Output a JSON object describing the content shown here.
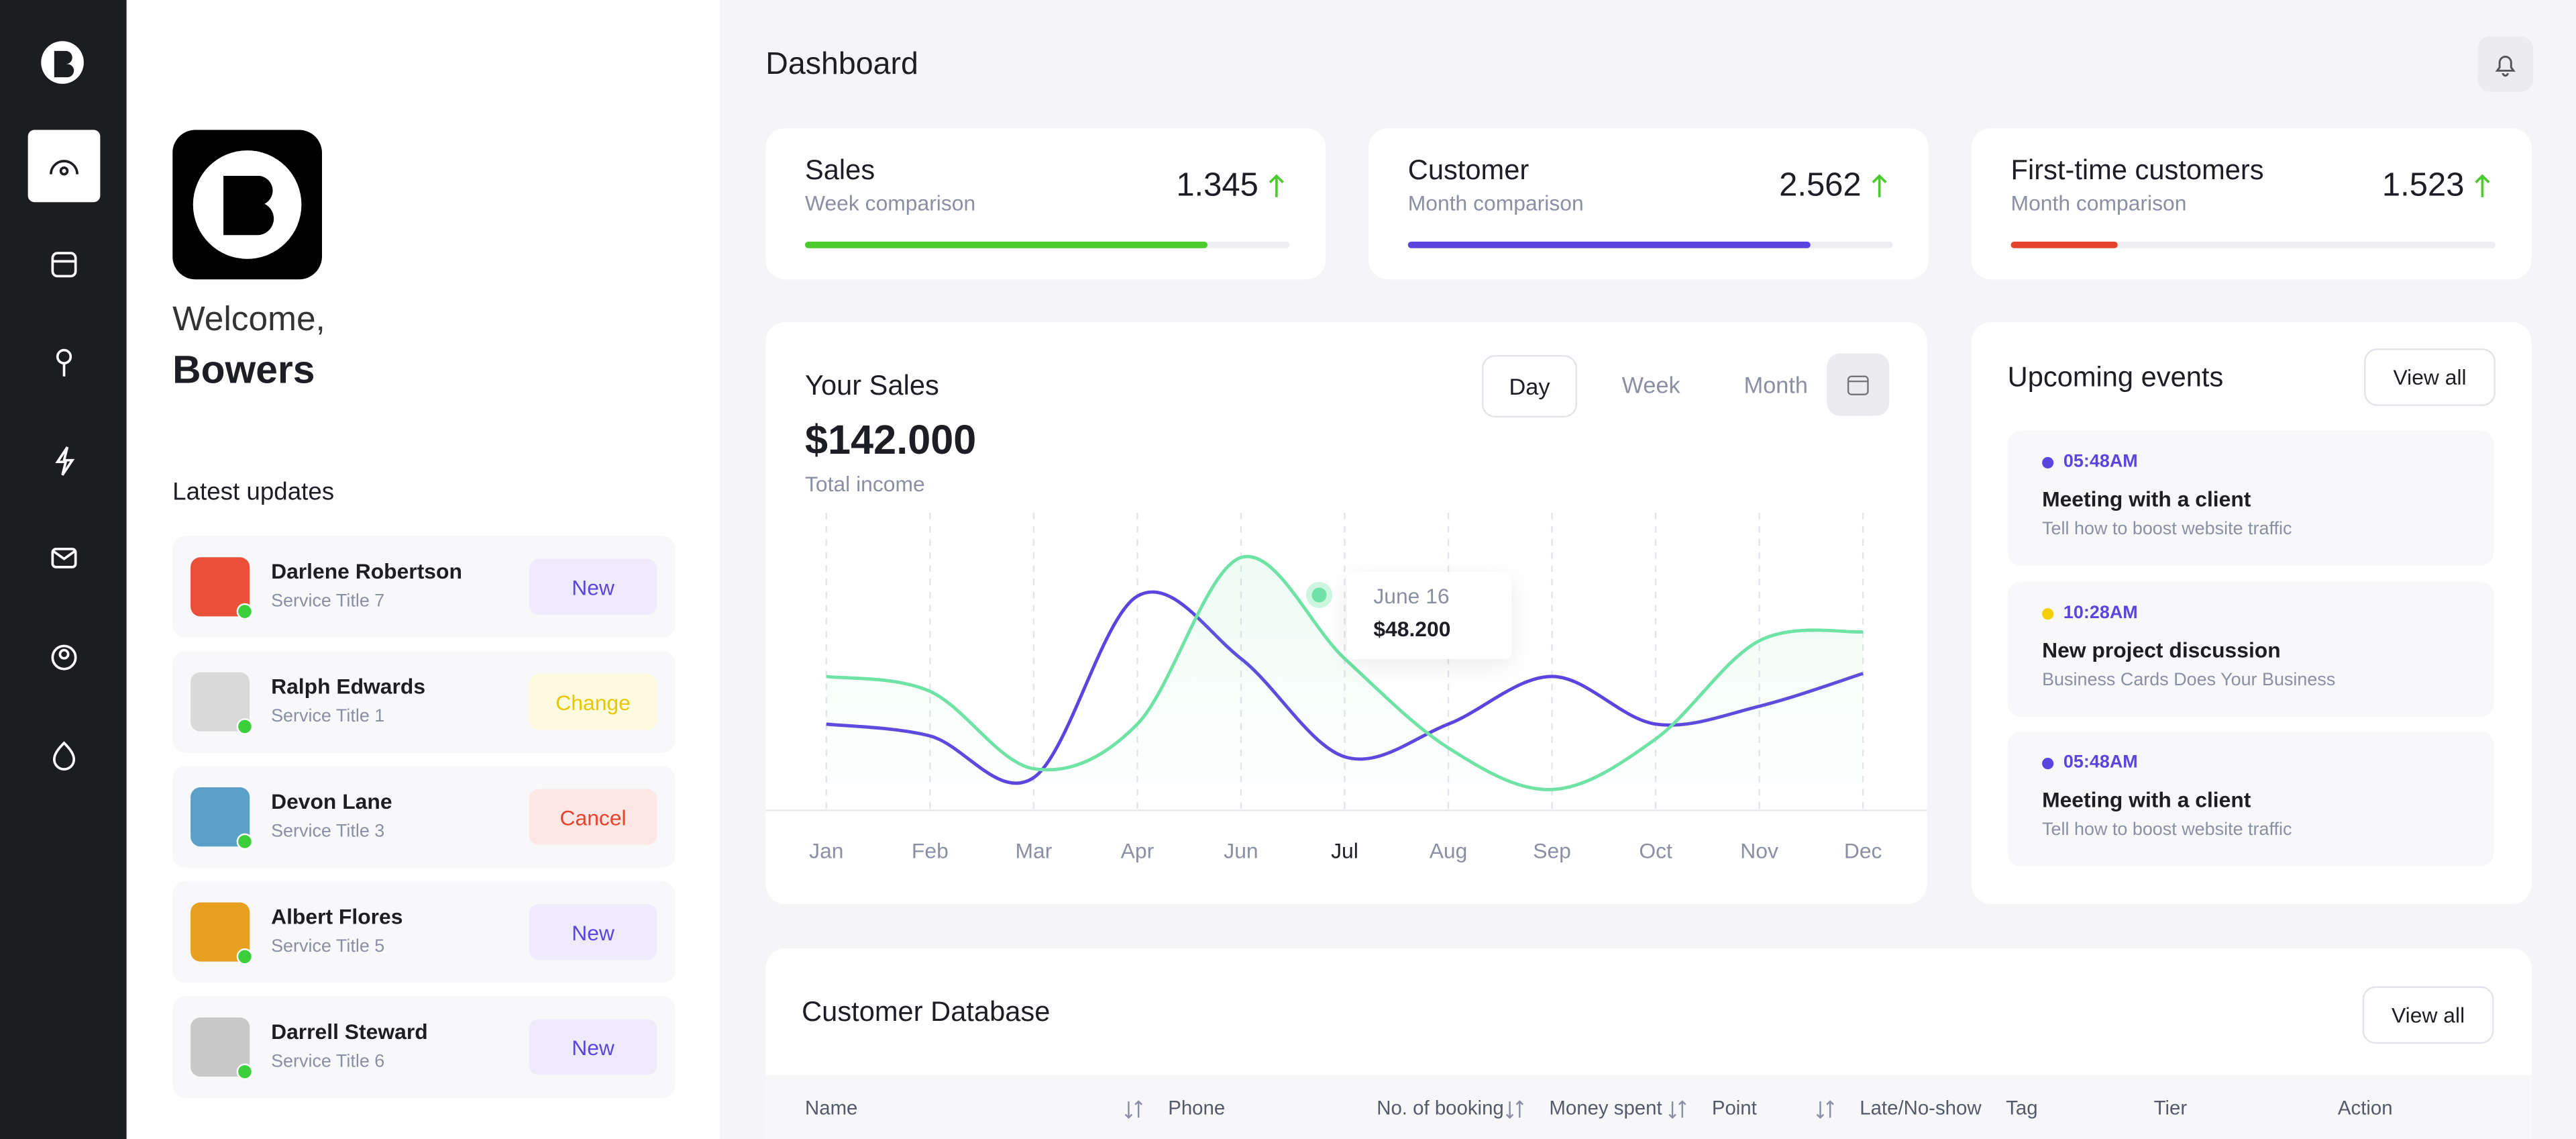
{
  "header": {
    "title": "Dashboard"
  },
  "profile": {
    "welcome": "Welcome,",
    "name": "Bowers"
  },
  "updates": {
    "title": "Latest updates",
    "items": [
      {
        "name": "Darlene Robertson",
        "subtitle": "Service Title 7",
        "action": "New",
        "color": "#5b45e0",
        "background": "#efebfd"
      },
      {
        "name": "Ralph Edwards",
        "subtitle": "Service Title 1",
        "action": "Change",
        "color": "#e6c700",
        "background": "#fdfbdf"
      },
      {
        "name": "Devon Lane",
        "subtitle": "Service Title 3",
        "action": "Cancel",
        "color": "#e5432c",
        "background": "#fde7e4"
      },
      {
        "name": "Albert Flores",
        "subtitle": "Service Title 5",
        "action": "New",
        "color": "#5b45e0",
        "background": "#efebfd"
      },
      {
        "name": "Darrell Steward",
        "subtitle": "Service Title 6",
        "action": "New",
        "color": "#5b45e0",
        "background": "#efebfd"
      }
    ]
  },
  "stats": [
    {
      "title": "Sales",
      "subtitle": "Week comparison",
      "value": "1.345",
      "progress": 83,
      "color": "#4ccb2e"
    },
    {
      "title": "Customer",
      "subtitle": "Month comparison",
      "value": "2.562",
      "progress": 83,
      "color": "#5b45e0"
    },
    {
      "title": "First-time customers",
      "subtitle": "Month comparison",
      "value": "1.523",
      "progress": 22,
      "color": "#e5432c"
    }
  ],
  "chart_data": {
    "type": "line",
    "title": "Your Sales",
    "total": "$142.000",
    "total_label": "Total income",
    "tabs": [
      "Day",
      "Week",
      "Month"
    ],
    "categories": [
      "Jan",
      "Feb",
      "Mar",
      "Apr",
      "Jun",
      "Jul",
      "Aug",
      "Sep",
      "Oct",
      "Nov",
      "Dec"
    ],
    "series": [
      {
        "color": "#5b45e0",
        "values": [
          29,
          25,
          11,
          72,
          51,
          18,
          29,
          45,
          29,
          35,
          46
        ]
      },
      {
        "color": "#6fe3a5",
        "values": [
          45,
          40,
          14,
          29,
          85,
          51,
          21,
          7,
          24,
          57,
          60
        ]
      }
    ],
    "ylim": [
      0,
      100
    ],
    "tooltip": {
      "date": "June 16",
      "value": "$48.200"
    }
  },
  "events": {
    "title": "Upcoming events",
    "action": "View all",
    "items": [
      {
        "time": "05:48AM",
        "title": "Meeting with a client",
        "subtitle": "Tell how to boost website traffic",
        "color": "#5b45e0"
      },
      {
        "time": "10:28AM",
        "title": "New project discussion",
        "subtitle": "Business Cards Does Your Business",
        "color": "#f5d000"
      },
      {
        "time": "05:48AM",
        "title": "Meeting with a client",
        "subtitle": "Tell how to boost website traffic",
        "color": "#5b45e0"
      }
    ]
  },
  "customers": {
    "title": "Customer Database",
    "action": "View all",
    "columns": [
      "Name",
      "Phone",
      "No. of booking",
      "Money spent",
      "Point",
      "Late/No-show",
      "Tag",
      "Tier",
      "Action"
    ]
  }
}
